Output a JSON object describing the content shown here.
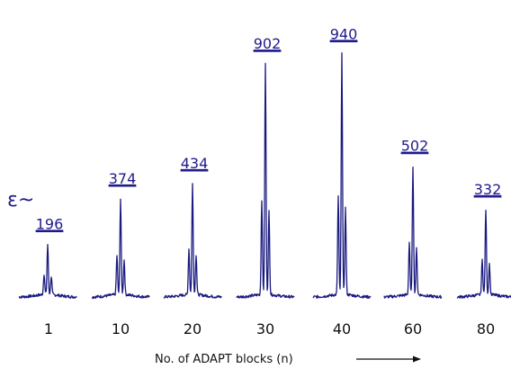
{
  "chart_data": {
    "type": "line",
    "series_prefix": "ε~",
    "categories": [
      "1",
      "10",
      "20",
      "30",
      "40",
      "60",
      "80"
    ],
    "values": [
      196,
      374,
      434,
      902,
      940,
      502,
      332
    ],
    "xlabel": "No. of ADAPT blocks (n)",
    "colors": {
      "trace": "#1a1a80",
      "label": "#1f1a8c",
      "text": "#111111"
    }
  }
}
